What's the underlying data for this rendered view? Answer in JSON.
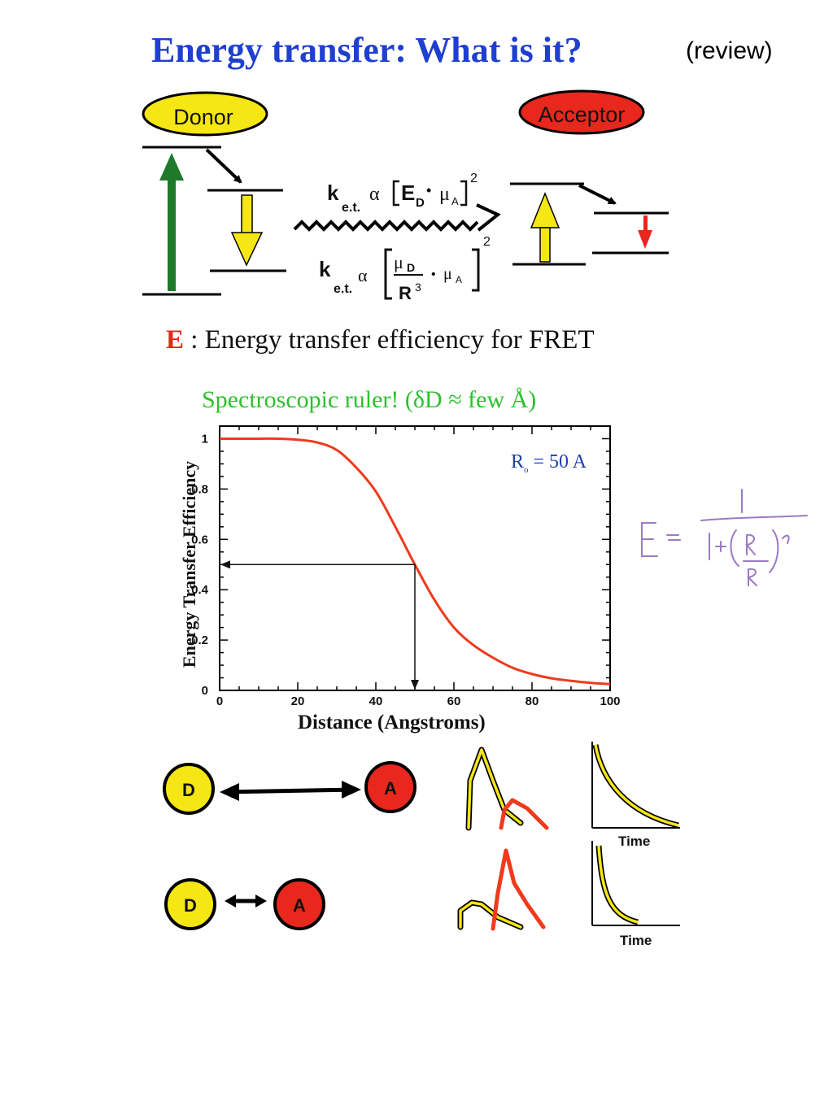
{
  "header": {
    "title": "Energy transfer: What is it?",
    "tag": "(review)"
  },
  "scheme": {
    "donor_label": "Donor",
    "acceptor_label": "Acceptor",
    "rate_symbol": "k",
    "rate_subscript": "e.t.",
    "proportional": "α",
    "field_symbol": "E",
    "field_subscript": "D",
    "mu": "μ",
    "mu_sub_a": "A",
    "mu_sub_d": "D",
    "distance": "R",
    "cube": "3",
    "square": "2",
    "dot": "•"
  },
  "efficiency_heading": {
    "letter": "E",
    "text": " : Energy transfer efficiency for FRET"
  },
  "ruler_note": "Spectroscopic ruler! (δD ≈ few Å)",
  "chart_data": {
    "type": "line",
    "title": "",
    "xlabel": "Distance (Angstroms)",
    "ylabel": "Energy Transfer Efficiency",
    "xlim": [
      0,
      100
    ],
    "ylim": [
      0,
      1.05
    ],
    "x_ticks": [
      0,
      20,
      40,
      60,
      80,
      100
    ],
    "y_ticks": [
      0,
      0.2,
      0.4,
      0.6,
      0.8,
      1
    ],
    "r0_label": "R",
    "r0_sub": "o",
    "r0_value": "= 50  A",
    "r0": 50,
    "series": [
      {
        "color": "#ef3a1c",
        "x": [
          0,
          5,
          10,
          15,
          20,
          25,
          30,
          35,
          40,
          45,
          50,
          55,
          60,
          65,
          70,
          75,
          80,
          85,
          90,
          95,
          100
        ],
        "y": [
          1.0,
          1.0,
          1.0,
          1.0,
          0.996,
          0.985,
          0.955,
          0.885,
          0.79,
          0.65,
          0.5,
          0.36,
          0.25,
          0.18,
          0.13,
          0.09,
          0.065,
          0.048,
          0.038,
          0.03,
          0.025
        ]
      }
    ],
    "guide_point": [
      50,
      0.5
    ],
    "grid": false
  },
  "handwritten_formula": "E = 1 / (1+(R/R0)^6)",
  "pairs": {
    "donor_letter": "D",
    "acceptor_letter": "A",
    "time_label": "Time"
  },
  "colors": {
    "title_blue": "#1f3fd0",
    "donor_yellow": "#f5e614",
    "acceptor_red": "#e8281c",
    "green_arrow": "#1e7a2a",
    "ruler_green": "#2cc12c",
    "handwriting_purple": "#9a7bc4"
  }
}
